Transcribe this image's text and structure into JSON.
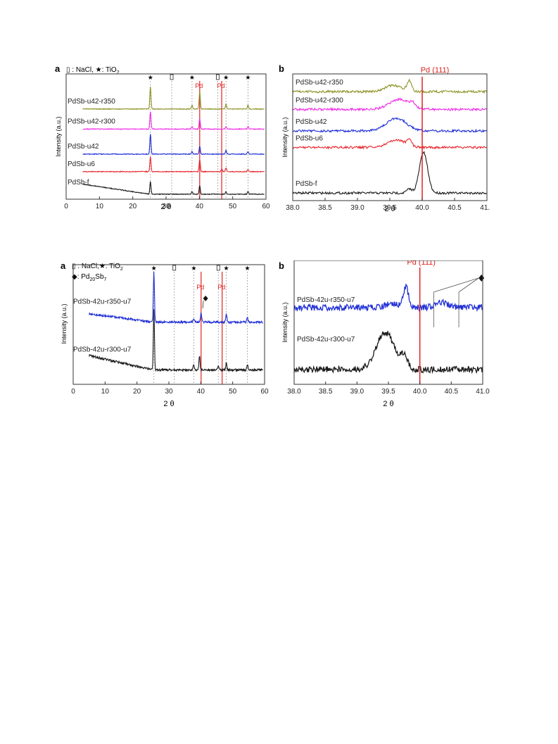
{
  "colors": {
    "black": "#1a1a1a",
    "red": "#e8282f",
    "blue": "#1f2ed6",
    "magenta": "#f02ae6",
    "olive": "#8f9327",
    "pd_line": "#e02020",
    "ref_line": "#9a9a9a"
  },
  "chart_data": [
    {
      "id": "top-a",
      "type": "line",
      "panel_letter": "a",
      "xlabel": "2 θ",
      "ylabel": "Intensity (a.u.)",
      "xlim": [
        0,
        60
      ],
      "xticks": [
        "0",
        "10",
        "20",
        "30",
        "40",
        "50",
        "60"
      ],
      "legend_line1": "▯ : NaCl, ★: TiO",
      "legend_sub": "2",
      "ref_labels": [
        "Pd",
        "Pd"
      ],
      "ref_lines": [
        {
          "x": 25.3,
          "kind": "star"
        },
        {
          "x": 31.7,
          "kind": "nacl"
        },
        {
          "x": 37.8,
          "kind": "star"
        },
        {
          "x": 40.1,
          "kind": "pd"
        },
        {
          "x": 45.5,
          "kind": "nacl"
        },
        {
          "x": 46.7,
          "kind": "pd"
        },
        {
          "x": 48.0,
          "kind": "star"
        },
        {
          "x": 54.6,
          "kind": "star"
        }
      ],
      "series": [
        {
          "name": "PdSb-f",
          "color": "black",
          "baseline": 0.04,
          "slope_start": 0.08,
          "peaks": [
            [
              25.3,
              0.1
            ],
            [
              40.1,
              0.07
            ],
            [
              48.0,
              0.02
            ],
            [
              54.6,
              0.02
            ],
            [
              37.8,
              0.02
            ]
          ]
        },
        {
          "name": "PdSb-u6",
          "color": "red",
          "baseline": 0.22,
          "peaks": [
            [
              25.3,
              0.12
            ],
            [
              40.1,
              0.1
            ],
            [
              46.7,
              0.02
            ],
            [
              48.0,
              0.03
            ],
            [
              54.6,
              0.02
            ]
          ]
        },
        {
          "name": "PdSb-u42",
          "color": "blue",
          "baseline": 0.36,
          "peaks": [
            [
              25.3,
              0.16
            ],
            [
              40.1,
              0.06
            ],
            [
              37.8,
              0.02
            ],
            [
              48.0,
              0.03
            ],
            [
              54.6,
              0.02
            ]
          ]
        },
        {
          "name": "PdSb-u42-r300",
          "color": "magenta",
          "baseline": 0.56,
          "peaks": [
            [
              25.3,
              0.14
            ],
            [
              40.1,
              0.08
            ],
            [
              37.8,
              0.02
            ],
            [
              48.0,
              0.02
            ],
            [
              54.6,
              0.02
            ]
          ]
        },
        {
          "name": "PdSb-u42-r350",
          "color": "olive",
          "baseline": 0.72,
          "peaks": [
            [
              25.3,
              0.18
            ],
            [
              40.1,
              0.14
            ],
            [
              37.8,
              0.03
            ],
            [
              48.0,
              0.04
            ],
            [
              54.6,
              0.03
            ]
          ]
        }
      ]
    },
    {
      "id": "top-b",
      "type": "line",
      "panel_letter": "b",
      "xlabel": "2 θ",
      "ylabel": "Intensity (a.u.)",
      "xlim": [
        38.0,
        41.0
      ],
      "xticks": [
        "38.0",
        "38.5",
        "39.0",
        "39.5",
        "40.0",
        "40.5",
        "41.0"
      ],
      "ref_label": "Pd (111)",
      "ref_x": 40.0,
      "series": [
        {
          "name": "PdSb-f",
          "color": "black",
          "baseline": 0.06,
          "bumps": [
            [
              40.02,
              0.09,
              0.32
            ],
            [
              39.8,
              0.06,
              0.03
            ]
          ]
        },
        {
          "name": "PdSb-u6",
          "color": "red",
          "baseline": 0.42,
          "bumps": [
            [
              39.6,
              0.18,
              0.06
            ],
            [
              39.8,
              0.05,
              0.05
            ]
          ]
        },
        {
          "name": "PdSb-u42",
          "color": "blue",
          "baseline": 0.55,
          "bumps": [
            [
              39.6,
              0.22,
              0.1
            ]
          ]
        },
        {
          "name": "PdSb-u42-r300",
          "color": "magenta",
          "baseline": 0.72,
          "bumps": [
            [
              39.65,
              0.22,
              0.08
            ],
            [
              39.85,
              0.05,
              0.03
            ]
          ]
        },
        {
          "name": "PdSb-u42-r350",
          "color": "olive",
          "baseline": 0.86,
          "bumps": [
            [
              39.55,
              0.18,
              0.05
            ],
            [
              39.8,
              0.05,
              0.08
            ]
          ]
        }
      ]
    },
    {
      "id": "bottom-a",
      "type": "line",
      "panel_letter": "a",
      "xlabel": "2 θ",
      "ylabel": "Intensity (a.u.)",
      "xlim": [
        0,
        60
      ],
      "xticks": [
        "0",
        "10",
        "20",
        "30",
        "40",
        "50",
        "60"
      ],
      "legend_line1": "▯ : NaCl,★: TiO",
      "legend_sub": "2",
      "legend_line2": "◆: Pd",
      "legend_line2_sub1": "20",
      "legend_line2_mid": "Sb",
      "legend_line2_sub2": "7",
      "ref_labels": [
        "Pd",
        "Pd"
      ],
      "ref_lines": [
        {
          "x": 25.3,
          "kind": "star"
        },
        {
          "x": 31.7,
          "kind": "nacl"
        },
        {
          "x": 37.8,
          "kind": "star"
        },
        {
          "x": 40.1,
          "kind": "pd"
        },
        {
          "x": 45.5,
          "kind": "nacl"
        },
        {
          "x": 46.7,
          "kind": "pd"
        },
        {
          "x": 48.0,
          "kind": "star"
        },
        {
          "x": 54.6,
          "kind": "star"
        }
      ],
      "series": [
        {
          "name": "PdSb-42u-r300-u7",
          "color": "black",
          "baseline": 0.12,
          "slope_start": 0.08,
          "peaks": [
            [
              25.3,
              0.5
            ],
            [
              39.6,
              0.12
            ],
            [
              37.8,
              0.05
            ],
            [
              48.0,
              0.06
            ],
            [
              54.6,
              0.05
            ],
            [
              45.5,
              0.03
            ]
          ]
        },
        {
          "name": "PdSb-42u-r350-u7",
          "color": "blue",
          "baseline": 0.52,
          "slope_start": 0.04,
          "peaks": [
            [
              25.3,
              0.42
            ],
            [
              40.1,
              0.08
            ],
            [
              37.8,
              0.03
            ],
            [
              48.0,
              0.07
            ],
            [
              54.6,
              0.04
            ]
          ]
        }
      ]
    },
    {
      "id": "bottom-b",
      "type": "line",
      "panel_letter": "b",
      "xlabel": "2 θ",
      "ylabel": "Intensity (a.u.)",
      "xlim": [
        38.0,
        41.0
      ],
      "xticks": [
        "38.0",
        "38.5",
        "39.0",
        "39.5",
        "40.0",
        "40.5",
        "41.0"
      ],
      "ref_label": "Pd (111)",
      "ref_x": 40.0,
      "diamond_x": [
        40.22,
        40.62
      ],
      "series": [
        {
          "name": "PdSb-42u-r300-u7",
          "color": "black",
          "baseline": 0.12,
          "bumps": [
            [
              39.45,
              0.2,
              0.3
            ],
            [
              39.75,
              0.08,
              0.1
            ]
          ]
        },
        {
          "name": "PdSb-42u-r350-u7",
          "color": "blue",
          "baseline": 0.62,
          "bumps": [
            [
              39.78,
              0.06,
              0.16
            ],
            [
              39.55,
              0.15,
              0.03
            ],
            [
              40.35,
              0.15,
              0.04
            ]
          ]
        }
      ]
    }
  ]
}
